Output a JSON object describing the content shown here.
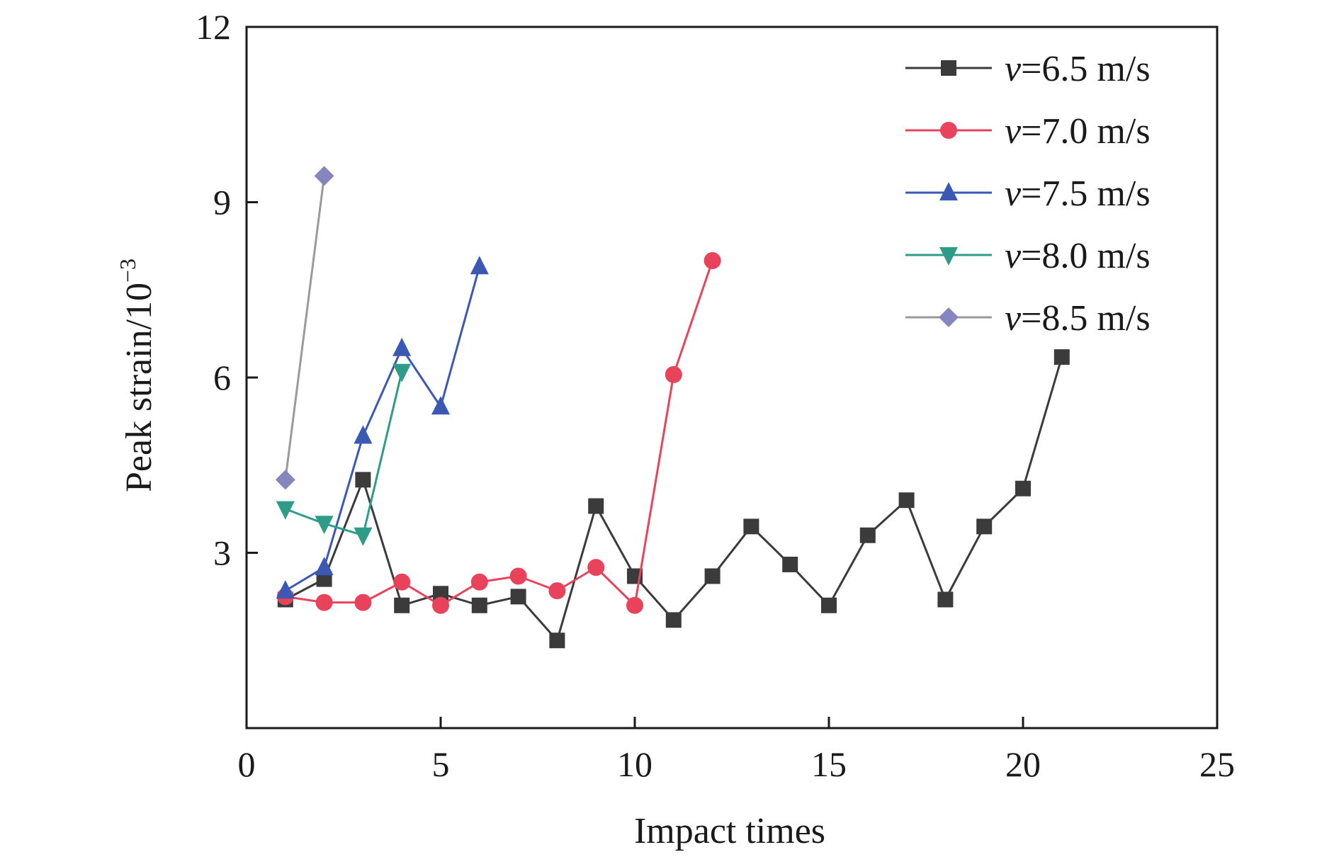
{
  "chart_data": {
    "type": "line",
    "xlabel": "Impact times",
    "ylabel_main": "Peak strain/10",
    "ylabel_exp": "−3",
    "xlim": [
      0,
      25
    ],
    "ylim": [
      0,
      12
    ],
    "xticks": [
      0,
      5,
      10,
      15,
      20,
      25
    ],
    "yticks": [
      3,
      6,
      9,
      12
    ],
    "ytick_labels": [
      "3",
      "6",
      "9",
      "12"
    ],
    "x_zero_label": "0",
    "grid": false,
    "legend_position": "top-right",
    "series": [
      {
        "name": "v=6.5 m/s",
        "legend_var": "v",
        "legend_rest": "=6.5 m/s",
        "color": "#3b3b3b",
        "marker": "square",
        "x": [
          1,
          2,
          3,
          4,
          5,
          6,
          7,
          8,
          9,
          10,
          11,
          12,
          13,
          14,
          15,
          16,
          17,
          18,
          19,
          20,
          21
        ],
        "y": [
          2.2,
          2.55,
          4.25,
          2.1,
          2.3,
          2.1,
          2.25,
          1.5,
          3.8,
          2.6,
          1.85,
          2.6,
          3.45,
          2.8,
          2.1,
          3.3,
          3.9,
          2.2,
          3.45,
          4.1,
          6.35
        ]
      },
      {
        "name": "v=7.0 m/s",
        "legend_var": "v",
        "legend_rest": "=7.0 m/s",
        "color": "#e8435a",
        "marker": "circle",
        "x": [
          1,
          2,
          3,
          4,
          5,
          6,
          7,
          8,
          9,
          10,
          11,
          12
        ],
        "y": [
          2.25,
          2.15,
          2.15,
          2.5,
          2.1,
          2.5,
          2.6,
          2.35,
          2.75,
          2.1,
          6.05,
          8.0
        ]
      },
      {
        "name": "v=7.5 m/s",
        "legend_var": "v",
        "legend_rest": "=7.5 m/s",
        "color": "#3a58b4",
        "marker": "triangle-up",
        "x": [
          1,
          2,
          3,
          4,
          5,
          6
        ],
        "y": [
          2.35,
          2.75,
          5.0,
          6.5,
          5.5,
          7.9
        ]
      },
      {
        "name": "v=8.0 m/s",
        "legend_var": "v",
        "legend_rest": "=8.0 m/s",
        "color": "#2e9c86",
        "marker": "triangle-down",
        "x": [
          1,
          2,
          3,
          4
        ],
        "y": [
          3.75,
          3.5,
          3.3,
          6.1
        ]
      },
      {
        "name": "v=8.5 m/s",
        "legend_var": "v",
        "legend_rest": "=8.5 m/s",
        "color": "#8585bf",
        "marker": "diamond",
        "x": [
          1,
          2
        ],
        "y": [
          4.25,
          9.45
        ]
      }
    ],
    "series_line_colors": [
      "#3b3b3b",
      "#e8435a",
      "#3a58b4",
      "#2e9c86",
      "#9a9a9a"
    ]
  }
}
